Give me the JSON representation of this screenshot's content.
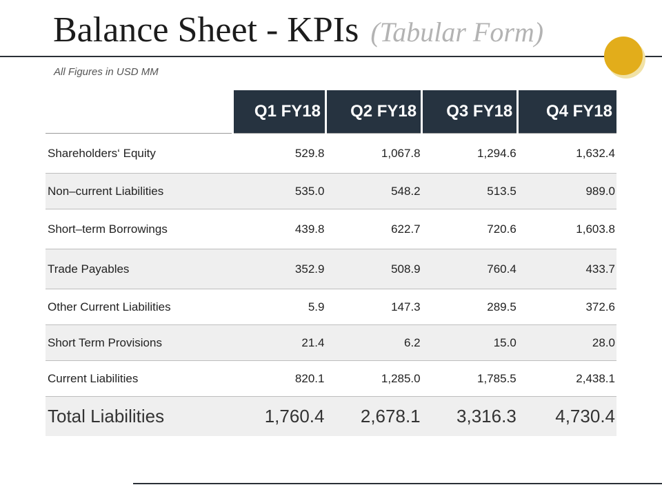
{
  "header": {
    "title": "Balance Sheet - KPIs",
    "subtitle": "(Tabular Form)",
    "units_note": "All Figures in USD MM",
    "accent_color": "#e2ad1b"
  },
  "table": {
    "columns": [
      "Q1 FY18",
      "Q2 FY18",
      "Q3 FY18",
      "Q4 FY18"
    ],
    "header_color": "#263340",
    "rows": [
      {
        "label": "Shareholders‘ Equity",
        "values": [
          "529.8",
          "1,067.8",
          "1,294.6",
          "1,632.4"
        ]
      },
      {
        "label": "Non–current Liabilities",
        "values": [
          "535.0",
          "548.2",
          "513.5",
          "989.0"
        ]
      },
      {
        "label": "Short–term Borrowings",
        "values": [
          "439.8",
          "622.7",
          "720.6",
          "1,603.8"
        ]
      },
      {
        "label": "Trade Payables",
        "values": [
          "352.9",
          "508.9",
          "760.4",
          "433.7"
        ]
      },
      {
        "label": "Other Current Liabilities",
        "values": [
          "5.9",
          "147.3",
          "289.5",
          "372.6"
        ]
      },
      {
        "label": "Short Term Provisions",
        "values": [
          "21.4",
          "6.2",
          "15.0",
          "28.0"
        ]
      },
      {
        "label": "Current Liabilities",
        "values": [
          "820.1",
          "1,285.0",
          "1,785.5",
          "2,438.1"
        ]
      }
    ],
    "total": {
      "label": "Total Liabilities",
      "values": [
        "1,760.4",
        "2,678.1",
        "3,316.3",
        "4,730.4"
      ]
    }
  }
}
